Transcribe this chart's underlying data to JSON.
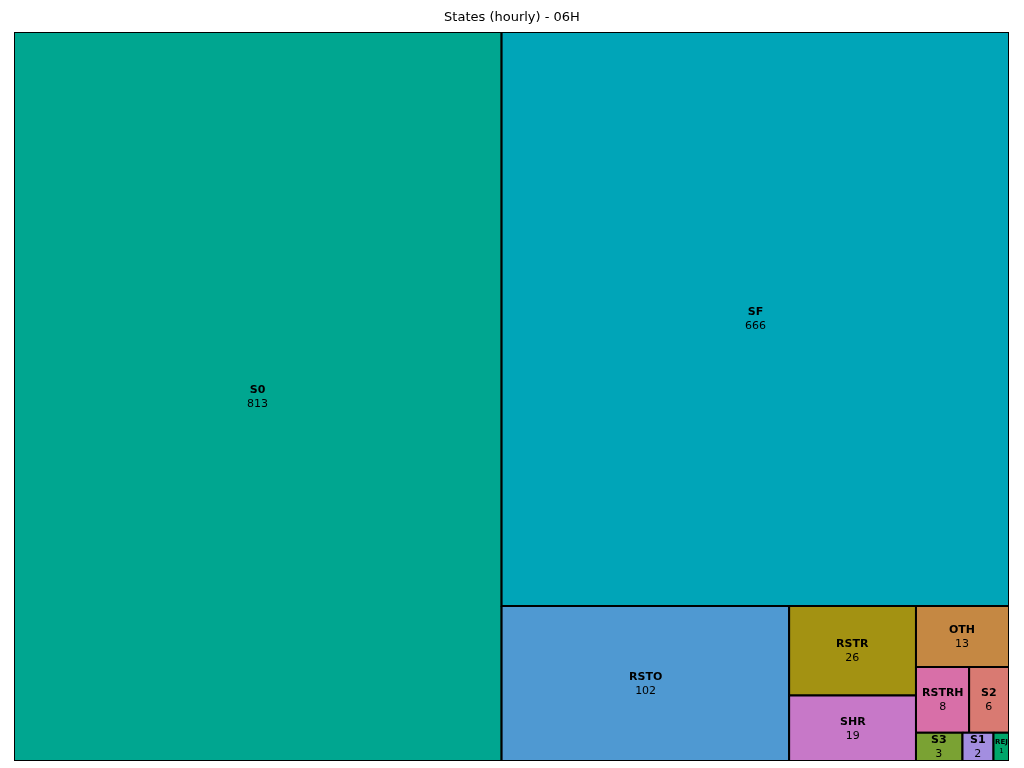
{
  "chart_data": {
    "type": "other",
    "title": "States (hourly) - 06H",
    "categories": [
      "S0",
      "SF",
      "RSTO",
      "RSTR",
      "SHR",
      "OTH",
      "RSTRH",
      "S2",
      "S3",
      "S1",
      "REJ"
    ],
    "values": [
      813,
      666,
      102,
      26,
      19,
      13,
      8,
      6,
      3,
      2,
      1
    ],
    "colors": [
      "#00a690",
      "#00a5b8",
      "#4f99d2",
      "#a39212",
      "#c778c8",
      "#c58843",
      "#d86fa8",
      "#d97a72",
      "#7aa233",
      "#a38ee0",
      "#00a66a"
    ],
    "data_labels": true
  }
}
